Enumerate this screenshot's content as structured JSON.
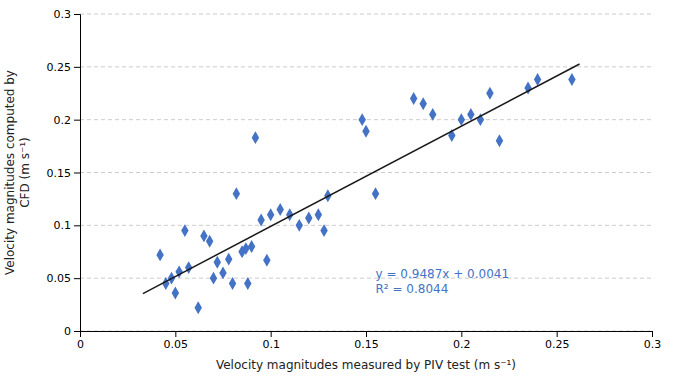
{
  "chart_data": {
    "type": "scatter",
    "xlabel": "Velocity magnitudes measured by PIV test (m s⁻¹)",
    "ylabel": "Velocity magnitudes computed by\nCFD (m s⁻¹)",
    "series": [
      {
        "type": "scatter",
        "color": "#4472C4",
        "marker": "diamond",
        "x": [
          0.042,
          0.045,
          0.048,
          0.05,
          0.052,
          0.055,
          0.057,
          0.062,
          0.065,
          0.068,
          0.07,
          0.072,
          0.075,
          0.078,
          0.08,
          0.082,
          0.085,
          0.087,
          0.088,
          0.09,
          0.092,
          0.095,
          0.098,
          0.1,
          0.105,
          0.11,
          0.115,
          0.12,
          0.125,
          0.128,
          0.13,
          0.148,
          0.15,
          0.155,
          0.175,
          0.18,
          0.185,
          0.195,
          0.2,
          0.205,
          0.21,
          0.215,
          0.22,
          0.235,
          0.24,
          0.258
        ],
        "values": [
          0.072,
          0.045,
          0.05,
          0.036,
          0.056,
          0.095,
          0.06,
          0.022,
          0.09,
          0.085,
          0.05,
          0.065,
          0.055,
          0.068,
          0.045,
          0.13,
          0.075,
          0.078,
          0.045,
          0.08,
          0.183,
          0.105,
          0.067,
          0.11,
          0.115,
          0.11,
          0.1,
          0.107,
          0.11,
          0.095,
          0.128,
          0.2,
          0.189,
          0.13,
          0.22,
          0.215,
          0.205,
          0.185,
          0.2,
          0.205,
          0.2,
          0.225,
          0.18,
          0.23,
          0.238,
          0.238
        ]
      },
      {
        "type": "line",
        "color": "#1a1a1a",
        "x": [
          0.033,
          0.262
        ],
        "values": [
          0.0354071,
          0.2526594
        ]
      }
    ],
    "xlim": [
      0,
      0.3
    ],
    "ylim": [
      0,
      0.3
    ],
    "xticks": [
      0,
      0.05,
      0.1,
      0.15,
      0.2,
      0.25,
      0.3
    ],
    "yticks": [
      0,
      0.05,
      0.1,
      0.15,
      0.2,
      0.25,
      0.3
    ],
    "grid": "y",
    "annotations": [
      {
        "x": 0.155,
        "y": 0.032,
        "text": "y = 0.9487x + 0.0041\nR² = 0.8044",
        "color": "#4472C4"
      }
    ]
  }
}
